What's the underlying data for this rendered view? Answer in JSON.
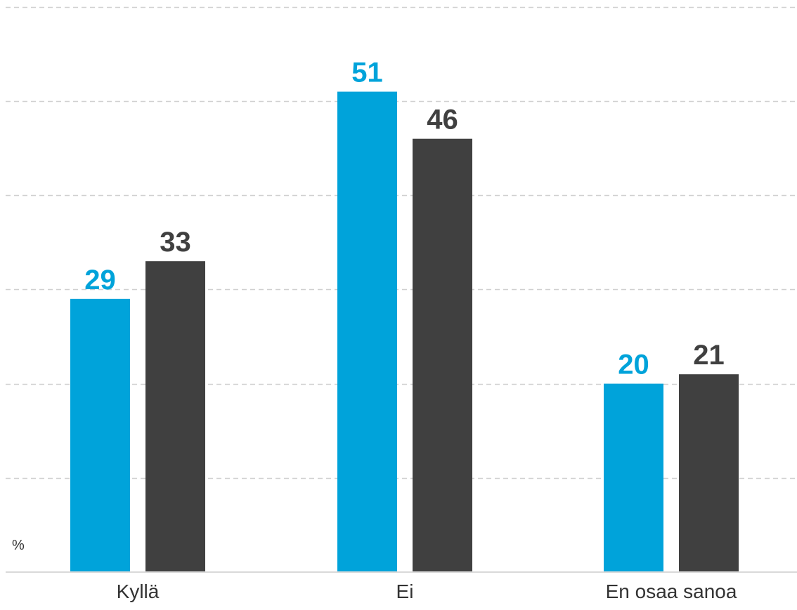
{
  "chart_data": {
    "type": "bar",
    "unit_label": "%",
    "categories": [
      "Kyllä",
      "Ei",
      "En osaa sanoa"
    ],
    "series": [
      {
        "values": [
          29,
          51,
          20
        ],
        "color": "#00a3da"
      },
      {
        "values": [
          33,
          46,
          21
        ],
        "color": "#404040"
      }
    ],
    "ylim": [
      0,
      60
    ],
    "grid": true,
    "grid_step": 10,
    "grid_style": "dashed",
    "legend": "none"
  }
}
